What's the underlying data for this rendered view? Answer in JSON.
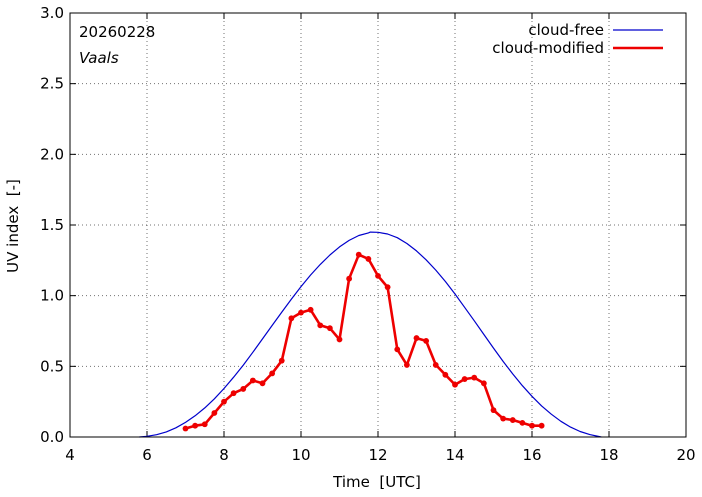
{
  "chart_data": {
    "type": "line",
    "annotations": {
      "date": "20260228",
      "station": "Vaals"
    },
    "xlabel": "Time  [UTC]",
    "ylabel": "UV index  [-]",
    "xlim": [
      4,
      20
    ],
    "ylim": [
      0,
      3.0
    ],
    "xticks": [
      4,
      6,
      8,
      10,
      12,
      14,
      16,
      18,
      20
    ],
    "xtick_labels": [
      "4",
      "6",
      "8",
      "10",
      "12",
      "14",
      "16",
      "18",
      "20"
    ],
    "yticks": [
      0,
      0.5,
      1.0,
      1.5,
      2.0,
      2.5,
      3.0
    ],
    "ytick_labels": [
      "0.0",
      "0.5",
      "1.0",
      "1.5",
      "2.0",
      "2.5",
      "3.0"
    ],
    "legend_position": "top-right",
    "series": [
      {
        "name": "cloud-free",
        "color": "#0000cc",
        "markers": false,
        "x": [
          5.8,
          6.0,
          6.25,
          6.5,
          6.75,
          7.0,
          7.25,
          7.5,
          7.75,
          8.0,
          8.25,
          8.5,
          8.75,
          9.0,
          9.25,
          9.5,
          9.75,
          10.0,
          10.25,
          10.5,
          10.75,
          11.0,
          11.25,
          11.5,
          11.75,
          11.8,
          12.0,
          12.25,
          12.5,
          12.75,
          13.0,
          13.25,
          13.5,
          13.75,
          14.0,
          14.25,
          14.5,
          14.75,
          15.0,
          15.25,
          15.5,
          15.75,
          16.0,
          16.25,
          16.5,
          16.75,
          17.0,
          17.25,
          17.5,
          17.8
        ],
        "y": [
          0.0,
          0.005,
          0.016,
          0.036,
          0.065,
          0.103,
          0.15,
          0.206,
          0.27,
          0.343,
          0.423,
          0.509,
          0.6,
          0.694,
          0.789,
          0.884,
          0.976,
          1.064,
          1.146,
          1.221,
          1.288,
          1.345,
          1.391,
          1.426,
          1.444,
          1.45,
          1.448,
          1.436,
          1.41,
          1.369,
          1.317,
          1.254,
          1.181,
          1.1,
          1.012,
          0.918,
          0.822,
          0.725,
          0.629,
          0.535,
          0.446,
          0.363,
          0.288,
          0.22,
          0.161,
          0.111,
          0.07,
          0.039,
          0.017,
          0.0
        ]
      },
      {
        "name": "cloud-modified",
        "color": "#ee0000",
        "markers": true,
        "x": [
          7.0,
          7.25,
          7.5,
          7.75,
          8.0,
          8.25,
          8.5,
          8.75,
          9.0,
          9.25,
          9.5,
          9.75,
          10.0,
          10.25,
          10.5,
          10.75,
          11.0,
          11.25,
          11.5,
          11.75,
          12.0,
          12.25,
          12.5,
          12.75,
          13.0,
          13.25,
          13.5,
          13.75,
          14.0,
          14.25,
          14.5,
          14.75,
          15.0,
          15.25,
          15.5,
          15.75,
          16.0,
          16.25
        ],
        "y": [
          0.06,
          0.08,
          0.09,
          0.17,
          0.25,
          0.31,
          0.34,
          0.4,
          0.38,
          0.45,
          0.54,
          0.84,
          0.88,
          0.9,
          0.79,
          0.77,
          0.69,
          1.12,
          1.29,
          1.26,
          1.14,
          1.06,
          0.62,
          0.51,
          0.7,
          0.68,
          0.51,
          0.44,
          0.37,
          0.41,
          0.42,
          0.38,
          0.19,
          0.13,
          0.12,
          0.1,
          0.08,
          0.08
        ]
      }
    ]
  }
}
